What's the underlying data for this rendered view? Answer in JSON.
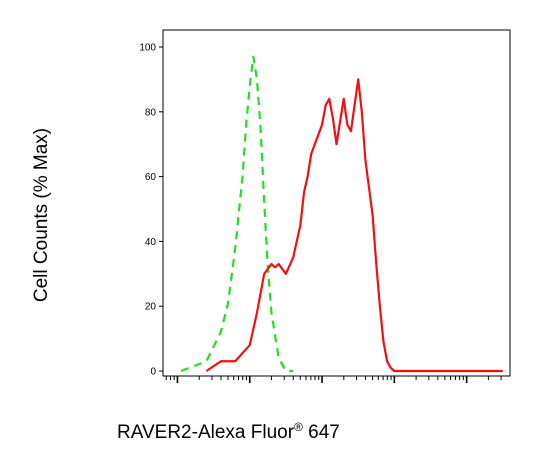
{
  "chart_data": {
    "type": "line",
    "title": "",
    "xlabel": "RAVER2-Alexa Fluor",
    "xlabel_superscript": "®",
    "xlabel_suffix": " 647",
    "ylabel": "Cell Counts (% Max)",
    "ylim": [
      0,
      100
    ],
    "x_scale": "log",
    "xlim": [
      -1.2,
      3.6
    ],
    "y_ticks": [
      "0",
      "20",
      "40",
      "60",
      "80",
      "100"
    ],
    "grid": false,
    "series": [
      {
        "color": "#22dd22",
        "style": "dashed",
        "x": [
          -0.95,
          -0.6,
          -0.4,
          -0.3,
          -0.2,
          -0.1,
          -0.05,
          0.0,
          0.05,
          0.1,
          0.15,
          0.2,
          0.25,
          0.3,
          0.4,
          0.5,
          0.6
        ],
        "y": [
          0,
          3,
          12,
          21,
          38,
          60,
          76,
          88,
          97,
          90,
          75,
          52,
          32,
          18,
          4,
          0,
          0
        ]
      },
      {
        "color": "#ee1111",
        "style": "solid",
        "x": [
          -0.6,
          -0.4,
          -0.2,
          0.0,
          0.1,
          0.2,
          0.3,
          0.35,
          0.4,
          0.5,
          0.6,
          0.7,
          0.75,
          0.8,
          0.85,
          0.9,
          1.0,
          1.05,
          1.1,
          1.15,
          1.2,
          1.3,
          1.35,
          1.4,
          1.45,
          1.5,
          1.55,
          1.6,
          1.7,
          1.75,
          1.8,
          1.85,
          1.9,
          1.95,
          2.0,
          2.05,
          2.1,
          2.2,
          2.3,
          2.5,
          2.8,
          3.2,
          3.5
        ],
        "y": [
          0,
          3,
          3,
          8,
          18,
          30,
          33,
          32,
          33,
          30,
          35,
          45,
          55,
          60,
          67,
          70,
          76,
          82,
          84,
          78,
          70,
          84,
          76,
          74,
          82,
          90,
          80,
          65,
          48,
          33,
          20,
          9,
          3,
          1,
          0,
          0,
          0,
          0,
          0,
          0,
          0,
          0,
          0
        ]
      }
    ]
  }
}
